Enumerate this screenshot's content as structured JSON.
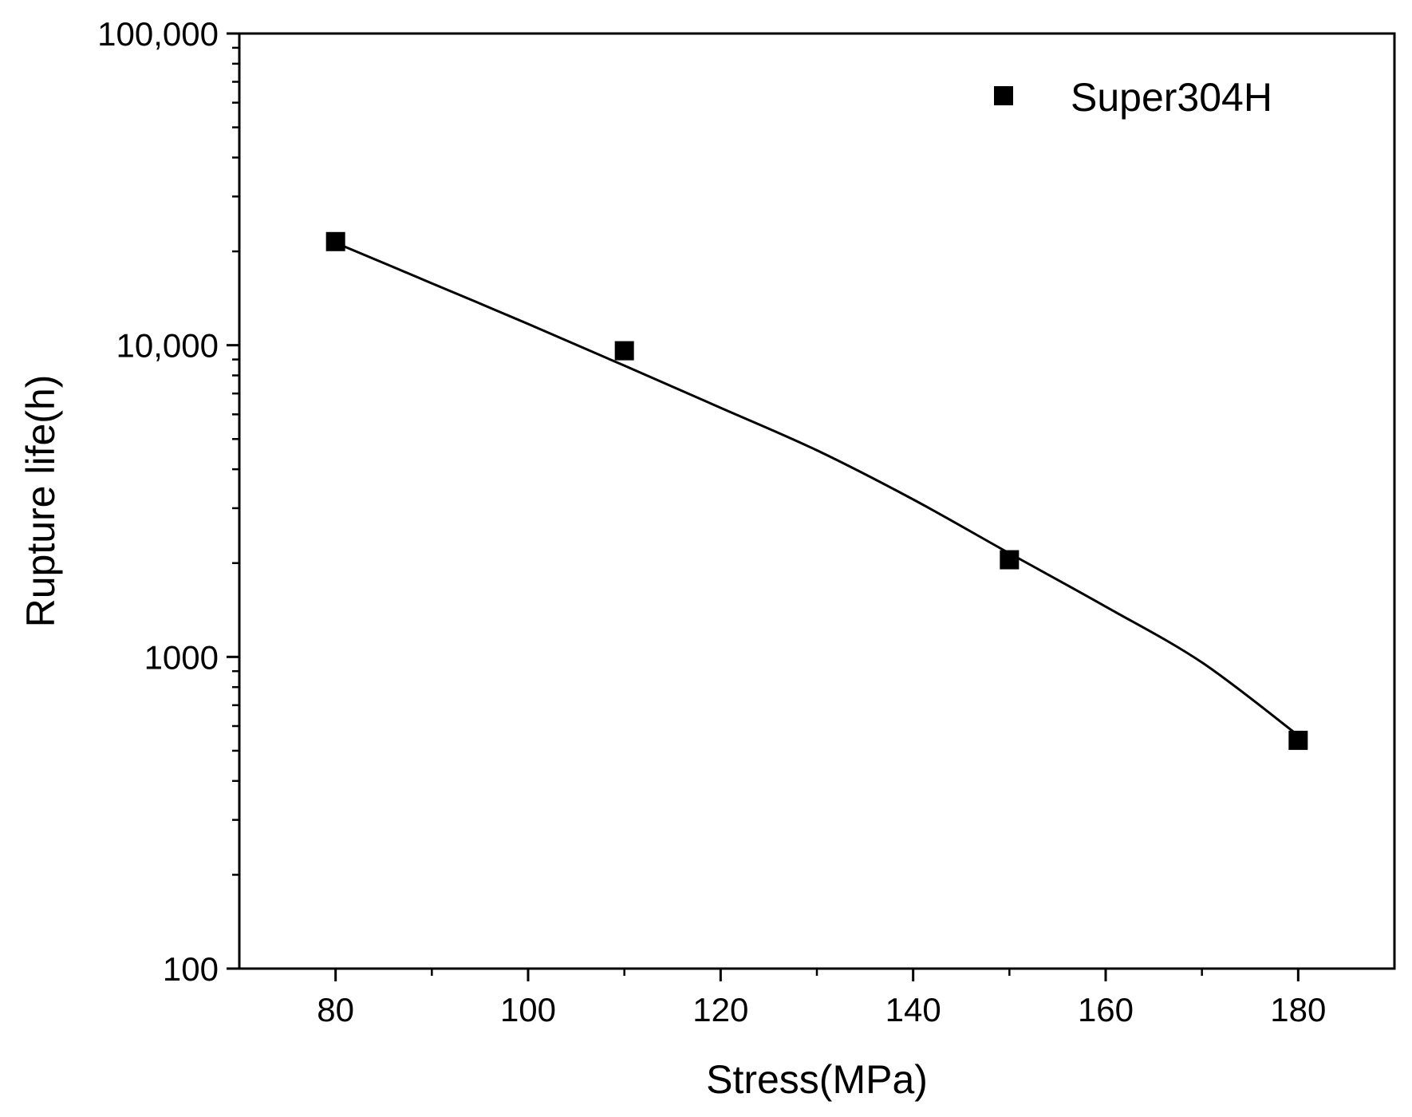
{
  "chart_data": {
    "type": "scatter",
    "title": "",
    "xlabel": "Stress(MPa)",
    "ylabel": "Rupture life(h)",
    "xlim": [
      70,
      190
    ],
    "ylim": [
      100,
      100000
    ],
    "yscale": "log",
    "x_ticks": [
      80,
      100,
      120,
      140,
      160,
      180
    ],
    "x_tick_labels": [
      "80",
      "100",
      "120",
      "140",
      "160",
      "180"
    ],
    "x_minor_ticks": [
      90,
      110,
      130,
      150,
      170
    ],
    "y_ticks": [
      100,
      1000,
      10000,
      100000
    ],
    "y_tick_labels": [
      "100",
      "1000",
      "10,000",
      "100,000"
    ],
    "grid": false,
    "legend_position": "top-right",
    "series": [
      {
        "name": "Super304H",
        "marker": "square",
        "color": "#000000",
        "x": [
          80,
          110,
          150,
          180
        ],
        "y": [
          21500,
          9600,
          2050,
          540
        ]
      }
    ],
    "fit_curve": {
      "color": "#000000",
      "x": [
        80,
        90,
        100,
        110,
        120,
        130,
        140,
        150,
        160,
        170,
        180
      ],
      "y": [
        21300,
        15800,
        11700,
        8600,
        6300,
        4600,
        3200,
        2150,
        1450,
        960,
        560
      ]
    }
  }
}
